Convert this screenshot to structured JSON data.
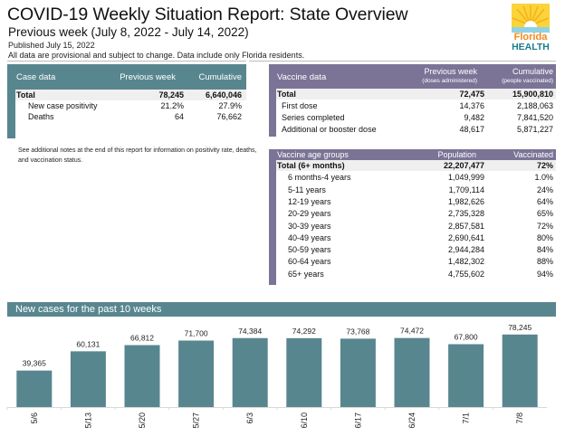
{
  "header": {
    "title": "COVID-19 Weekly Situation Report: State Overview",
    "subtitle": "Previous week (July 8, 2022 - July 14, 2022)",
    "published": "Published July 15, 2022",
    "disclaimer": "All data are provisional and subject to change. Data include only Florida residents.",
    "logo": {
      "icon": "florida-health-sun-logo",
      "line1": "Florida",
      "line2": "HEALTH"
    }
  },
  "colors": {
    "teal": "#58868f",
    "purple": "#7b7496",
    "bar": "#58868f"
  },
  "case_data": {
    "headers": [
      "Case data",
      "Previous week",
      "Cumulative"
    ],
    "rows": [
      {
        "label": "Total",
        "previous_week": "78,245",
        "cumulative": "6,640,046",
        "total": true
      },
      {
        "label": "New case positivity",
        "previous_week": "21.2%",
        "cumulative": "27.9%"
      },
      {
        "label": "Deaths",
        "previous_week": "64",
        "cumulative": "76,662"
      }
    ]
  },
  "note": "See additional notes at the end of this report for information on positivity rate, deaths, and vaccination status.",
  "vaccine_data": {
    "headers": [
      "Vaccine data",
      "Previous week",
      "Cumulative"
    ],
    "subheaders": [
      "",
      "(doses administered)",
      "(people vaccinated)"
    ],
    "rows": [
      {
        "label": "Total",
        "previous_week": "72,475",
        "cumulative": "15,900,810",
        "total": true
      },
      {
        "label": "First dose",
        "previous_week": "14,376",
        "cumulative": "2,188,063"
      },
      {
        "label": "Series completed",
        "previous_week": "9,482",
        "cumulative": "7,841,520"
      },
      {
        "label": "Additional or booster dose",
        "previous_week": "48,617",
        "cumulative": "5,871,227"
      }
    ]
  },
  "vaccine_age_groups": {
    "headers": [
      "Vaccine age groups",
      "Population",
      "Vaccinated"
    ],
    "rows": [
      {
        "label": "Total (6+ months)",
        "population": "22,207,477",
        "vaccinated": "72%",
        "total": true
      },
      {
        "label": "6 months-4 years",
        "population": "1,049,999",
        "vaccinated": "1.0%"
      },
      {
        "label": "5-11 years",
        "population": "1,709,114",
        "vaccinated": "24%"
      },
      {
        "label": "12-19 years",
        "population": "1,982,626",
        "vaccinated": "64%"
      },
      {
        "label": "20-29 years",
        "population": "2,735,328",
        "vaccinated": "65%"
      },
      {
        "label": "30-39 years",
        "population": "2,857,581",
        "vaccinated": "72%"
      },
      {
        "label": "40-49 years",
        "population": "2,690,641",
        "vaccinated": "80%"
      },
      {
        "label": "50-59 years",
        "population": "2,944,284",
        "vaccinated": "84%"
      },
      {
        "label": "60-64 years",
        "population": "1,482,302",
        "vaccinated": "88%"
      },
      {
        "label": "65+ years",
        "population": "4,755,602",
        "vaccinated": "94%"
      }
    ]
  },
  "chart_section": {
    "title": "New cases for the past 10 weeks"
  },
  "chart_data": {
    "type": "bar",
    "title": "New cases for the past 10 weeks",
    "xlabel": "",
    "ylabel": "",
    "categories": [
      "5/6",
      "5/13",
      "5/20",
      "5/27",
      "6/3",
      "6/10",
      "6/17",
      "6/24",
      "7/1",
      "7/8"
    ],
    "values": [
      39365,
      60131,
      66812,
      71700,
      74384,
      74292,
      73768,
      74472,
      67800,
      78245
    ],
    "data_labels": [
      "39,365",
      "60,131",
      "66,812",
      "71,700",
      "74,384",
      "74,292",
      "73,768",
      "74,472",
      "67,800",
      "78,245"
    ],
    "ylim": [
      0,
      80000
    ],
    "grid": false,
    "legend": "none"
  }
}
